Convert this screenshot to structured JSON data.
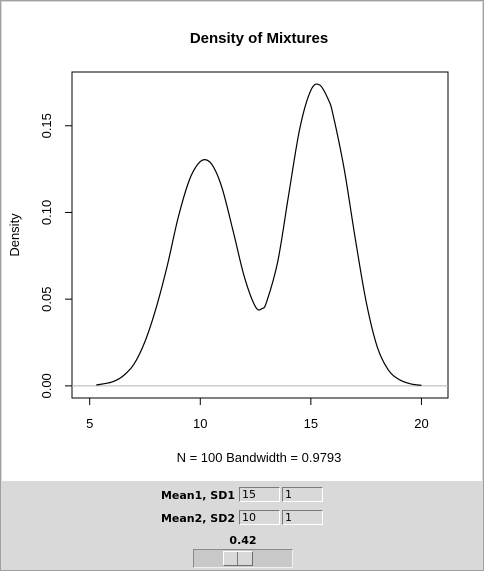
{
  "chart_data": {
    "type": "line",
    "title": "Density of Mixtures",
    "xlabel": "N = 100   Bandwidth = 0.9793",
    "ylabel": "Density",
    "xlim": [
      4.2,
      21.2
    ],
    "ylim": [
      -0.007,
      0.181
    ],
    "x_ticks": [
      5,
      10,
      15,
      20
    ],
    "x_tick_labels": [
      "5",
      "10",
      "15",
      "20"
    ],
    "y_ticks": [
      0.0,
      0.05,
      0.1,
      0.15
    ],
    "y_tick_labels": [
      "0.00",
      "0.05",
      "0.10",
      "0.15"
    ],
    "baseline": 0,
    "grid": false,
    "series": [
      {
        "x": [
          5.3,
          6.0,
          6.5,
          7.0,
          7.5,
          8.0,
          8.5,
          9.0,
          9.5,
          9.9,
          10.25,
          10.6,
          11.0,
          11.5,
          12.0,
          12.5,
          12.8,
          13.0,
          13.5,
          14.0,
          14.5,
          15.0,
          15.4,
          15.8,
          16.0,
          16.5,
          17.0,
          17.5,
          18.0,
          18.5,
          19.0,
          19.5,
          20.0
        ],
        "y": [
          0.0005,
          0.0022,
          0.0056,
          0.0125,
          0.0256,
          0.0448,
          0.0689,
          0.097,
          0.1185,
          0.128,
          0.1304,
          0.1262,
          0.1135,
          0.0885,
          0.0625,
          0.0455,
          0.0446,
          0.0485,
          0.0715,
          0.1105,
          0.1485,
          0.1705,
          0.1735,
          0.1648,
          0.1565,
          0.1255,
          0.0855,
          0.0485,
          0.0225,
          0.0092,
          0.0036,
          0.0012,
          0.0003
        ]
      }
    ]
  },
  "controls": {
    "mean1_label": "Mean1, SD1",
    "mean1_value": "15",
    "sd1_value": "1",
    "mean2_label": "Mean2, SD2",
    "mean2_value": "10",
    "sd2_value": "1",
    "slider_value": "0.42",
    "slider_fraction": 0.42
  }
}
